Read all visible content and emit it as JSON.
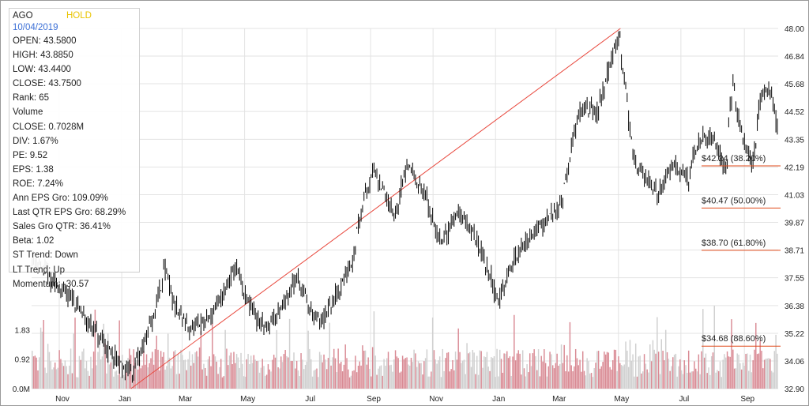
{
  "info": {
    "symbol": "AGO",
    "rating": "HOLD",
    "date": "10/04/2019",
    "lines": [
      "OPEN: 43.5800",
      "HIGH: 43.8850",
      "LOW: 43.4400",
      "CLOSE: 43.7500",
      "Rank: 65",
      "Volume",
      "CLOSE: 0.7028M",
      "DIV: 1.67%",
      "PE: 9.52",
      "EPS: 1.38",
      "ROE: 7.24%",
      "Ann EPS Gro: 109.09%",
      "Last QTR EPS Gro: 68.29%",
      "Sales Gro QTR: 36.41%",
      "Beta: 1.02",
      "ST Trend: Down",
      "LT Trend: Up",
      "Momentum: -30.57"
    ]
  },
  "colors": {
    "price_bar": "#000000",
    "volume_up": "#d98a94",
    "volume_down": "#cfcfcf",
    "trend_line": "#e8473c",
    "fib_line": "#e04a1a",
    "grid": "#e3e3e3",
    "axis_text": "#222222"
  },
  "chart_data": {
    "type": "ohlc",
    "x_axis": {
      "tick_labels": [
        "Nov",
        "Jan",
        "Mar",
        "May",
        "Jul",
        "Sep",
        "Nov",
        "Jan",
        "Mar",
        "May",
        "Jul",
        "Sep"
      ]
    },
    "price_axis": {
      "ticks": [
        48.0,
        46.84,
        45.68,
        44.52,
        43.35,
        42.19,
        41.03,
        39.87,
        38.71,
        37.55,
        36.38,
        35.22,
        34.06,
        32.9
      ],
      "tick_labels": [
        "48.00",
        "46.84",
        "45.68",
        "44.52",
        "43.35",
        "42.19",
        "41.03",
        "39.87",
        "38.71",
        "37.55",
        "36.38",
        "35.22",
        "34.06",
        "32.90"
      ],
      "ylim": [
        32.9,
        48.0
      ]
    },
    "volume_axis": {
      "tick_labels": [
        "0.0M",
        "0.92",
        "1.83"
      ],
      "ticks": [
        0,
        0.92,
        1.83
      ],
      "unit": "M"
    },
    "price_anchors": [
      {
        "date": "2017-10-09",
        "close": 38.3
      },
      {
        "date": "2017-10-25",
        "close": 37.4
      },
      {
        "date": "2017-11-15",
        "close": 36.6
      },
      {
        "date": "2017-12-10",
        "close": 35.0
      },
      {
        "date": "2018-01-02",
        "close": 33.8
      },
      {
        "date": "2018-01-12",
        "close": 33.6
      },
      {
        "date": "2018-02-02",
        "close": 36.0
      },
      {
        "date": "2018-02-12",
        "close": 38.0
      },
      {
        "date": "2018-02-22",
        "close": 36.3
      },
      {
        "date": "2018-03-10",
        "close": 35.3
      },
      {
        "date": "2018-03-28",
        "close": 35.9
      },
      {
        "date": "2018-04-12",
        "close": 37.0
      },
      {
        "date": "2018-04-22",
        "close": 38.1
      },
      {
        "date": "2018-05-02",
        "close": 36.7
      },
      {
        "date": "2018-05-20",
        "close": 35.4
      },
      {
        "date": "2018-06-05",
        "close": 36.2
      },
      {
        "date": "2018-06-22",
        "close": 37.6
      },
      {
        "date": "2018-07-05",
        "close": 36.2
      },
      {
        "date": "2018-07-15",
        "close": 35.6
      },
      {
        "date": "2018-08-02",
        "close": 37.0
      },
      {
        "date": "2018-08-15",
        "close": 38.3
      },
      {
        "date": "2018-08-25",
        "close": 40.9
      },
      {
        "date": "2018-09-05",
        "close": 42.1
      },
      {
        "date": "2018-09-25",
        "close": 40.1
      },
      {
        "date": "2018-10-08",
        "close": 42.4
      },
      {
        "date": "2018-10-25",
        "close": 41.0
      },
      {
        "date": "2018-11-10",
        "close": 38.9
      },
      {
        "date": "2018-11-25",
        "close": 40.3
      },
      {
        "date": "2018-12-08",
        "close": 39.7
      },
      {
        "date": "2018-12-20",
        "close": 38.6
      },
      {
        "date": "2019-01-05",
        "close": 36.5
      },
      {
        "date": "2019-01-20",
        "close": 38.3
      },
      {
        "date": "2019-02-05",
        "close": 39.3
      },
      {
        "date": "2019-02-25",
        "close": 40.1
      },
      {
        "date": "2019-03-08",
        "close": 40.7
      },
      {
        "date": "2019-03-20",
        "close": 43.6
      },
      {
        "date": "2019-03-28",
        "close": 44.8
      },
      {
        "date": "2019-04-12",
        "close": 44.4
      },
      {
        "date": "2019-04-25",
        "close": 46.6
      },
      {
        "date": "2019-05-03",
        "close": 47.7
      },
      {
        "date": "2019-05-10",
        "close": 45.4
      },
      {
        "date": "2019-05-17",
        "close": 42.4
      },
      {
        "date": "2019-06-01",
        "close": 41.6
      },
      {
        "date": "2019-06-10",
        "close": 41.0
      },
      {
        "date": "2019-06-25",
        "close": 42.4
      },
      {
        "date": "2019-07-10",
        "close": 41.7
      },
      {
        "date": "2019-07-20",
        "close": 43.4
      },
      {
        "date": "2019-08-05",
        "close": 43.3
      },
      {
        "date": "2019-08-15",
        "close": 42.1
      },
      {
        "date": "2019-08-22",
        "close": 45.6
      },
      {
        "date": "2019-08-30",
        "close": 43.8
      },
      {
        "date": "2019-09-10",
        "close": 42.3
      },
      {
        "date": "2019-09-20",
        "close": 45.4
      },
      {
        "date": "2019-09-30",
        "close": 45.3
      },
      {
        "date": "2019-10-04",
        "close": 43.75
      }
    ],
    "trend_line": {
      "start": {
        "date": "2018-01-10",
        "price": 32.9
      },
      "end": {
        "date": "2019-05-03",
        "price": 48.0
      }
    },
    "fib_levels": [
      {
        "label": "$42.24 (38.20%)",
        "value": 42.24
      },
      {
        "label": "$40.47 (50.00%)",
        "value": 40.47
      },
      {
        "label": "$38.70 (61.80%)",
        "value": 38.7
      },
      {
        "label": "$34.68 (88.60%)",
        "value": 34.68
      }
    ],
    "grid": true
  }
}
